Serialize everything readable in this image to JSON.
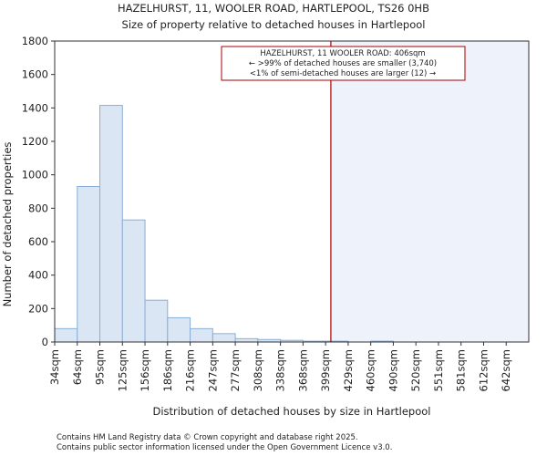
{
  "chart_data": {
    "type": "bar",
    "title": "HAZELHURST, 11, WOOLER ROAD, HARTLEPOOL, TS26 0HB",
    "subtitle": "Size of property relative to detached houses in Hartlepool",
    "xlabel": "Distribution of detached houses by size in Hartlepool",
    "ylabel": "Number of detached properties",
    "categories": [
      "34sqm",
      "64sqm",
      "95sqm",
      "125sqm",
      "156sqm",
      "186sqm",
      "216sqm",
      "247sqm",
      "277sqm",
      "308sqm",
      "338sqm",
      "368sqm",
      "399sqm",
      "429sqm",
      "460sqm",
      "490sqm",
      "520sqm",
      "551sqm",
      "581sqm",
      "612sqm",
      "642sqm"
    ],
    "bin_edges": [
      34,
      64,
      95,
      125,
      156,
      186,
      216,
      247,
      277,
      308,
      338,
      368,
      399,
      429,
      460,
      490,
      520,
      551,
      581,
      612,
      642
    ],
    "values": [
      80,
      930,
      1415,
      730,
      250,
      145,
      80,
      50,
      20,
      15,
      10,
      5,
      5,
      0,
      5,
      0,
      0,
      0,
      0,
      0,
      0
    ],
    "ylim": [
      0,
      1800
    ],
    "yticks": [
      0,
      200,
      400,
      600,
      800,
      1000,
      1200,
      1400,
      1600,
      1800
    ],
    "marker": {
      "value": 406,
      "lines": [
        "HAZELHURST, 11 WOOLER ROAD: 406sqm",
        "← >99% of detached houses are smaller (3,740)",
        "<1% of semi-detached houses are larger (12) →"
      ],
      "color": "#aa0000"
    },
    "colors": {
      "bar_fill": "#dae6f4",
      "bar_stroke": "#8aaed6",
      "shade": "#eef2fa"
    }
  },
  "footer": {
    "line1": "Contains HM Land Registry data © Crown copyright and database right 2025.",
    "line2": "Contains public sector information licensed under the Open Government Licence v3.0."
  }
}
